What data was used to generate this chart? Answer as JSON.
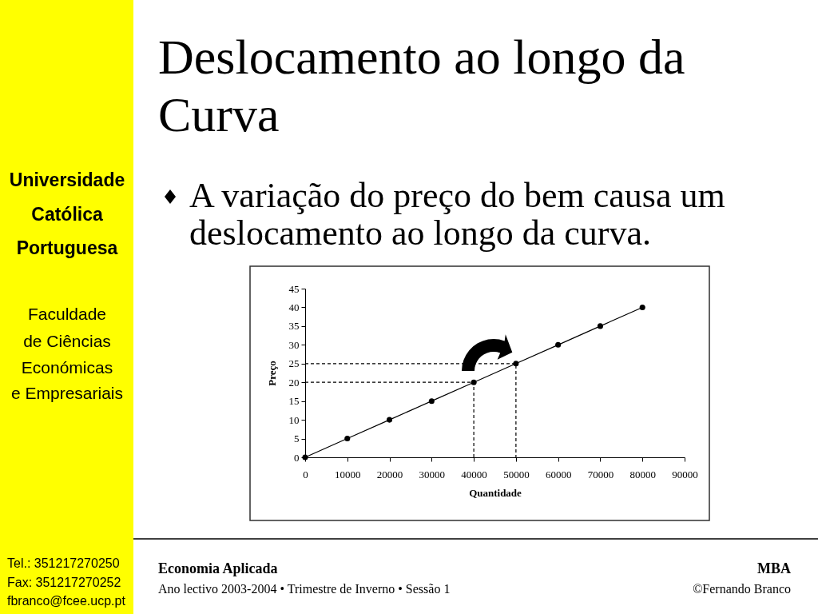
{
  "chart_data": {
    "type": "line",
    "title": "Deslocamento ao longo da Curva",
    "subtitle": "A variação do preço do bem causa um deslocamento ao longo da curva.",
    "xlabel": "Quantidade",
    "ylabel": "Preço",
    "series": [
      {
        "x": [
          0,
          10000,
          20000,
          30000,
          40000,
          50000,
          60000,
          70000,
          80000
        ],
        "values": [
          0,
          5,
          10,
          15,
          20,
          25,
          30,
          35,
          40
        ],
        "color": "#000000"
      },
      {
        "x": [
          0,
          40000,
          40000
        ],
        "values": [
          20,
          20,
          0
        ],
        "color": "#000000",
        "line_style": "dashed",
        "marker": "none"
      },
      {
        "x": [
          0,
          50000,
          50000
        ],
        "values": [
          25,
          25,
          0
        ],
        "color": "#000000",
        "line_style": "dashed",
        "marker": "none"
      }
    ],
    "xlim": [
      0,
      90000
    ],
    "xticks": [
      0,
      10000,
      20000,
      30000,
      40000,
      50000,
      60000,
      70000,
      80000,
      90000
    ],
    "ylim": [
      0,
      45
    ],
    "yticks": [
      0,
      5,
      10,
      15,
      20,
      25,
      30,
      35,
      40,
      45
    ],
    "grid": false,
    "marker": "circle",
    "line_style": "solid",
    "annotations": [
      "Universidade",
      "Católica",
      "Portuguesa",
      "Faculdade",
      "de Ciências",
      "Económicas",
      "e Empresariais",
      "Tel.: 351217270250",
      "Fax: 351217270252",
      "fbranco@fcee.ucp.pt",
      "Economia Aplicada",
      "MBA",
      "Ano lectivo 2003-2004 • Trimestre de Inverno • Sessão 1",
      "©Fernando Branco"
    ]
  }
}
